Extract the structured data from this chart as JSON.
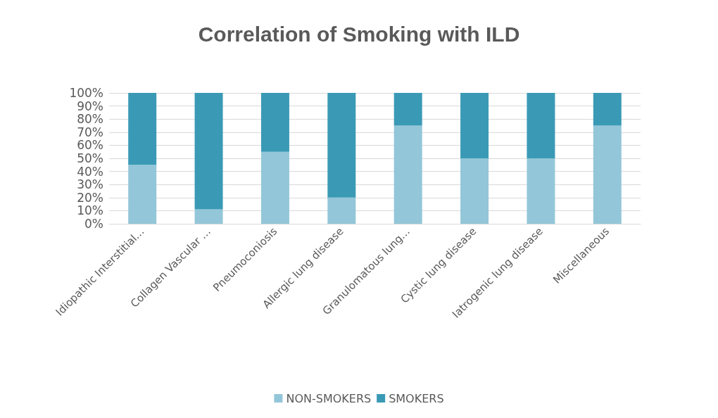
{
  "chart_data": {
    "type": "bar",
    "title": "Correlation of Smoking with ILD",
    "stacked": true,
    "categories": [
      "Idiopathic Interstitial…",
      "Collagen Vascular …",
      "Pneumoconiosis",
      "Allergic lung disease",
      "Granulomatous lung…",
      "Cystic lung disease",
      "Iatrogenic lung disease",
      "Miscellaneous"
    ],
    "series": [
      {
        "name": "NON-SMOKERS",
        "color": "#93c6d8",
        "values": [
          45,
          11,
          55,
          20,
          75,
          50,
          50,
          75
        ]
      },
      {
        "name": "SMOKERS",
        "color": "#3a9ab5",
        "values": [
          55,
          89,
          45,
          80,
          25,
          50,
          50,
          25
        ]
      }
    ],
    "ylim": [
      0,
      100
    ],
    "yticks": [
      {
        "value": 0,
        "label": "0%"
      },
      {
        "value": 10,
        "label": "10%"
      },
      {
        "value": 20,
        "label": "20%"
      },
      {
        "value": 30,
        "label": "30%"
      },
      {
        "value": 40,
        "label": "40%"
      },
      {
        "value": 50,
        "label": "50%"
      },
      {
        "value": 60,
        "label": "60%"
      },
      {
        "value": 70,
        "label": "70%"
      },
      {
        "value": 80,
        "label": "80%"
      },
      {
        "value": 90,
        "label": "90%"
      },
      {
        "value": 100,
        "label": "100%"
      }
    ],
    "grid": "y",
    "legend": "bottom"
  }
}
